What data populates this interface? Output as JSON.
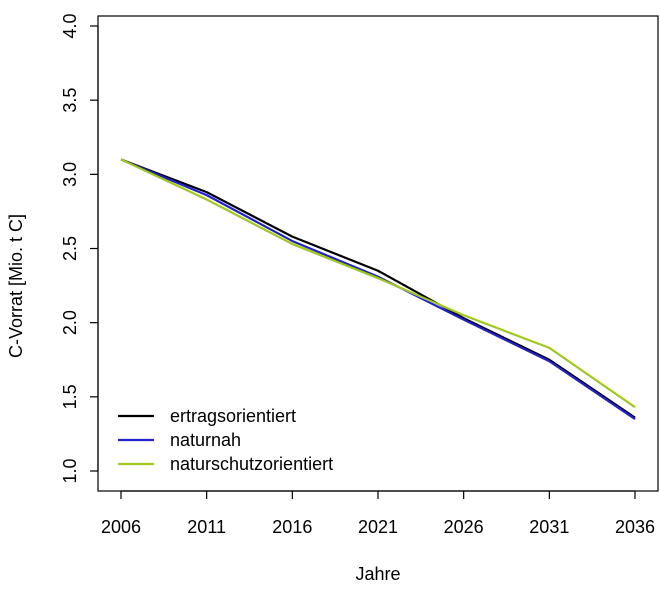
{
  "chart_data": {
    "type": "line",
    "title": "",
    "xlabel": "Jahre",
    "ylabel": "C-Vorrat [Mio. t C]",
    "x": [
      2006,
      2011,
      2016,
      2021,
      2026,
      2031,
      2036
    ],
    "xticks": [
      "2006",
      "2011",
      "2016",
      "2021",
      "2026",
      "2031",
      "2036"
    ],
    "xlim": [
      2006,
      2036
    ],
    "ylim": [
      1.0,
      4.0
    ],
    "yticks": [
      "1.0",
      "1.5",
      "2.0",
      "2.5",
      "3.0",
      "3.5",
      "4.0"
    ],
    "grid": false,
    "legend_position": "bottom-left",
    "series": [
      {
        "name": "ertragsorientiert",
        "color": "#000000",
        "values": [
          3.1,
          2.88,
          2.58,
          2.35,
          2.03,
          1.75,
          1.36
        ]
      },
      {
        "name": "naturnah",
        "color": "#2222cc",
        "values": [
          3.1,
          2.86,
          2.55,
          2.31,
          2.02,
          1.74,
          1.35
        ]
      },
      {
        "name": "naturschutzorientiert",
        "color": "#a0c81e",
        "values": [
          3.1,
          2.83,
          2.53,
          2.3,
          2.05,
          1.83,
          1.43
        ]
      }
    ]
  }
}
